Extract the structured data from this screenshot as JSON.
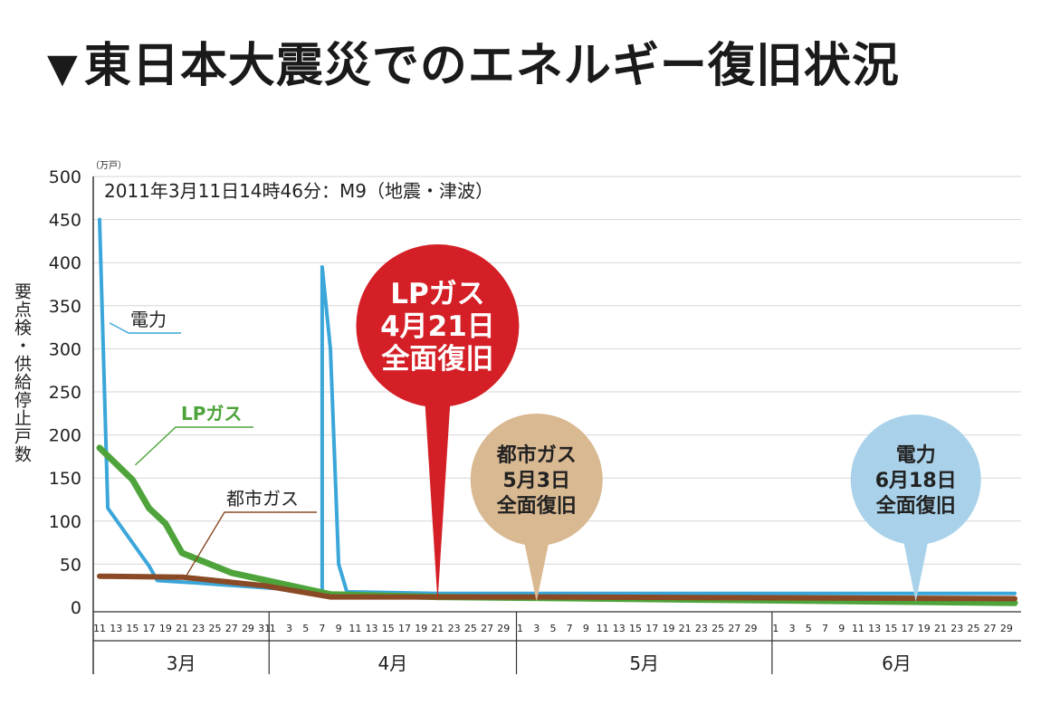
{
  "title": "東日本大震災でのエネルギー復旧状況",
  "title_mark": "▼",
  "chart_data": {
    "type": "line",
    "subtitle": "2011年3月11日14時46分：M9（地震・津波）",
    "ylabel": "要点検・供給停止戸数",
    "yunit": "（万戸）",
    "ylim": [
      0,
      500
    ],
    "yticks": [
      0,
      50,
      100,
      150,
      200,
      250,
      300,
      350,
      400,
      450,
      500
    ],
    "grid": true,
    "x_range": [
      "2011-03-11",
      "2011-06-30"
    ],
    "x_tick_labels": [
      {
        "month": 3,
        "days": [
          11,
          13,
          15,
          17,
          19,
          21,
          23,
          25,
          27,
          29,
          31
        ]
      },
      {
        "month": 4,
        "days": [
          1,
          3,
          5,
          7,
          9,
          11,
          13,
          15,
          17,
          19,
          21,
          23,
          25,
          27,
          29
        ]
      },
      {
        "month": 5,
        "days": [
          1,
          3,
          5,
          7,
          9,
          11,
          13,
          15,
          17,
          19,
          21,
          23,
          25,
          27,
          29
        ]
      },
      {
        "month": 6,
        "days": [
          1,
          3,
          5,
          7,
          9,
          11,
          13,
          15,
          17,
          19,
          21,
          23,
          25,
          27,
          29
        ]
      }
    ],
    "months": [
      {
        "label": "3月",
        "month": 3
      },
      {
        "label": "4月",
        "month": 4
      },
      {
        "label": "5月",
        "month": 5
      },
      {
        "label": "6月",
        "month": 6
      }
    ],
    "series": [
      {
        "name": "電力",
        "color": "#3aa6d9",
        "points": [
          [
            "2011-03-11",
            450
          ],
          [
            "2011-03-12",
            115
          ],
          [
            "2011-03-17",
            48
          ],
          [
            "2011-03-18",
            31
          ],
          [
            "2011-03-23",
            28
          ],
          [
            "2011-04-07",
            18
          ],
          [
            "2011-04-07",
            395
          ],
          [
            "2011-04-08",
            300
          ],
          [
            "2011-04-09",
            50
          ],
          [
            "2011-04-10",
            18
          ],
          [
            "2011-04-21",
            16
          ],
          [
            "2011-06-30",
            16
          ]
        ]
      },
      {
        "name": "LPガス",
        "color": "#4ea43a",
        "points": [
          [
            "2011-03-11",
            185
          ],
          [
            "2011-03-15",
            148
          ],
          [
            "2011-03-17",
            115
          ],
          [
            "2011-03-19",
            97
          ],
          [
            "2011-03-21",
            63
          ],
          [
            "2011-03-27",
            40
          ],
          [
            "2011-04-08",
            15
          ],
          [
            "2011-04-21",
            12
          ],
          [
            "2011-06-30",
            5
          ]
        ]
      },
      {
        "name": "都市ガス",
        "color": "#8a4a25",
        "points": [
          [
            "2011-03-11",
            36
          ],
          [
            "2011-03-21",
            35
          ],
          [
            "2011-03-31",
            25
          ],
          [
            "2011-04-08",
            12
          ],
          [
            "2011-05-03",
            12
          ],
          [
            "2011-06-30",
            10
          ]
        ]
      }
    ],
    "callouts": [
      {
        "lines": [
          "LPガス",
          "4月21日",
          "全面復旧"
        ],
        "date": "2011-04-21",
        "color": "#d41f26",
        "text_color": "#ffffff"
      },
      {
        "lines": [
          "都市ガス",
          "5月3日",
          "全面復旧"
        ],
        "date": "2011-05-03",
        "color": "#d9b991",
        "text_color": "#222222"
      },
      {
        "lines": [
          "電力",
          "6月18日",
          "全面復旧"
        ],
        "date": "2011-06-18",
        "color": "#a9d2ea",
        "text_color": "#222222"
      }
    ]
  }
}
